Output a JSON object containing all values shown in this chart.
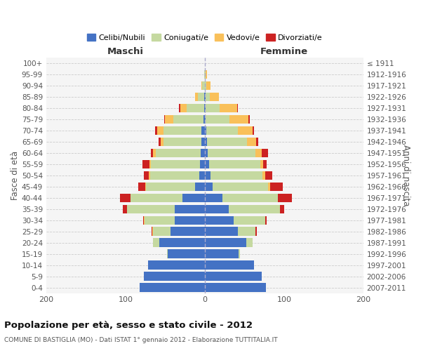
{
  "age_groups": [
    "0-4",
    "5-9",
    "10-14",
    "15-19",
    "20-24",
    "25-29",
    "30-34",
    "35-39",
    "40-44",
    "45-49",
    "50-54",
    "55-59",
    "60-64",
    "65-69",
    "70-74",
    "75-79",
    "80-84",
    "85-89",
    "90-94",
    "95-99",
    "100+"
  ],
  "birth_years": [
    "2007-2011",
    "2002-2006",
    "1997-2001",
    "1992-1996",
    "1987-1991",
    "1982-1986",
    "1977-1981",
    "1972-1976",
    "1967-1971",
    "1962-1966",
    "1957-1961",
    "1952-1956",
    "1947-1951",
    "1942-1946",
    "1937-1941",
    "1932-1936",
    "1927-1931",
    "1922-1926",
    "1917-1921",
    "1912-1916",
    "≤ 1911"
  ],
  "male": {
    "celibi": [
      82,
      77,
      72,
      47,
      57,
      43,
      38,
      38,
      28,
      12,
      7,
      6,
      5,
      4,
      4,
      2,
      1,
      1,
      0,
      0,
      0
    ],
    "coniugati": [
      0,
      0,
      0,
      1,
      8,
      22,
      38,
      60,
      66,
      62,
      62,
      62,
      57,
      48,
      48,
      38,
      22,
      8,
      3,
      1,
      0
    ],
    "vedovi": [
      0,
      0,
      0,
      0,
      0,
      1,
      1,
      0,
      0,
      1,
      2,
      2,
      3,
      4,
      8,
      10,
      8,
      3,
      1,
      0,
      0
    ],
    "divorziati": [
      0,
      0,
      0,
      0,
      0,
      1,
      1,
      5,
      13,
      9,
      6,
      9,
      3,
      2,
      3,
      1,
      2,
      0,
      0,
      0,
      0
    ]
  },
  "female": {
    "nubili": [
      77,
      72,
      62,
      43,
      52,
      42,
      36,
      30,
      22,
      10,
      7,
      5,
      4,
      3,
      2,
      1,
      1,
      1,
      0,
      0,
      0
    ],
    "coniugate": [
      0,
      0,
      0,
      1,
      8,
      22,
      40,
      65,
      70,
      70,
      66,
      65,
      60,
      50,
      40,
      30,
      18,
      5,
      2,
      1,
      0
    ],
    "vedove": [
      0,
      0,
      0,
      0,
      0,
      0,
      0,
      0,
      0,
      2,
      3,
      4,
      8,
      12,
      18,
      24,
      22,
      12,
      5,
      2,
      0
    ],
    "divorziate": [
      0,
      0,
      0,
      0,
      0,
      2,
      2,
      5,
      18,
      16,
      9,
      4,
      8,
      2,
      2,
      2,
      1,
      0,
      0,
      0,
      0
    ]
  },
  "colors": {
    "celibi": "#4472c4",
    "coniugati": "#c5d9a0",
    "vedovi": "#f9c05a",
    "divorziati": "#cc2222"
  },
  "xlim": 200,
  "title": "Popolazione per età, sesso e stato civile - 2012",
  "subtitle": "COMUNE DI BASTIGLIA (MO) - Dati ISTAT 1° gennaio 2012 - Elaborazione TUTTITALIA.IT",
  "ylabel_left": "Fasce di età",
  "ylabel_right": "Anni di nascita",
  "xlabel_maschi": "Maschi",
  "xlabel_femmine": "Femmine",
  "legend_labels": [
    "Celibi/Nubili",
    "Coniugati/e",
    "Vedovi/e",
    "Divorziati/e"
  ],
  "background_color": "#ffffff",
  "plot_bg_color": "#f5f5f5",
  "bar_height": 0.78,
  "grid_color": "#cccccc",
  "center_line_color": "#aaaacc"
}
